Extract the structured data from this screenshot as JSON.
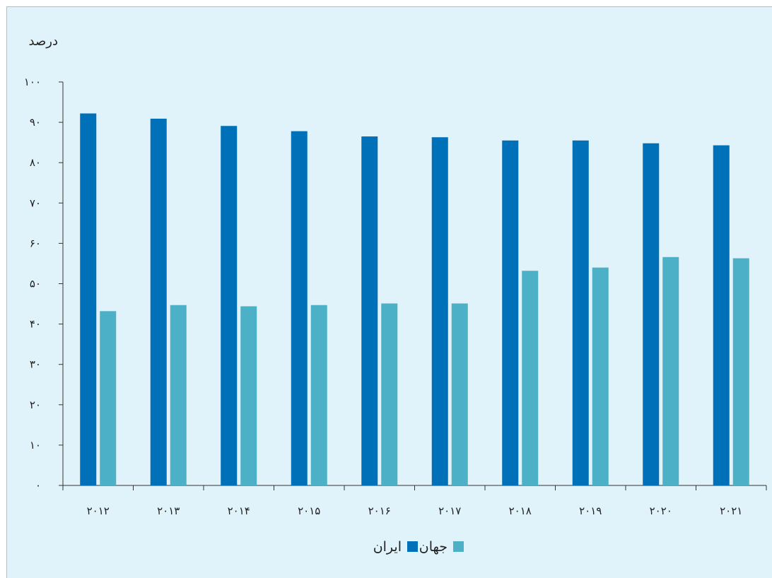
{
  "chart_data": {
    "type": "bar",
    "ylabel": "درصد",
    "ylim": [
      0,
      100
    ],
    "yticks": [
      "۰",
      "۱۰",
      "۲۰",
      "۳۰",
      "۴۰",
      "۵۰",
      "۶۰",
      "۷۰",
      "۸۰",
      "۹۰",
      "۱۰۰"
    ],
    "categories": [
      "۲۰۱۲",
      "۲۰۱۳",
      "۲۰۱۴",
      "۲۰۱۵",
      "۲۰۱۶",
      "۲۰۱۷",
      "۲۰۱۸",
      "۲۰۱۹",
      "۲۰۲۰",
      "۲۰۲۱"
    ],
    "series": [
      {
        "name": "ایران",
        "color": "#0070b8",
        "values": [
          92.2,
          90.9,
          89.1,
          87.8,
          86.5,
          86.3,
          85.5,
          85.5,
          84.8,
          84.3
        ]
      },
      {
        "name": "جهان",
        "color": "#4cb0c6",
        "values": [
          43.2,
          44.7,
          44.4,
          44.7,
          45.1,
          45.1,
          53.2,
          54.0,
          56.6,
          56.3
        ]
      }
    ],
    "grid": false,
    "legend_position": "bottom"
  }
}
